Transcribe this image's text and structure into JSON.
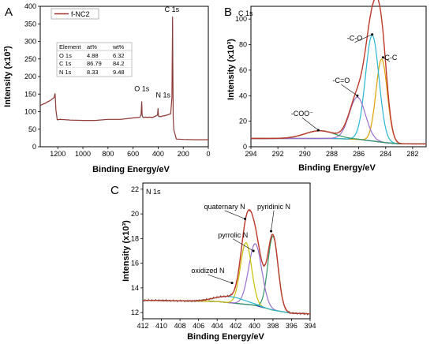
{
  "chart_data": [
    {
      "type": "line",
      "letter": "A",
      "xlabel": "Binding Energy/eV",
      "ylabel": "Intensity (x10³)",
      "xlim": [
        1340,
        0
      ],
      "ylim": [
        0,
        400
      ],
      "x_reversed": true,
      "xticks": [
        1200,
        1000,
        800,
        600,
        400,
        200,
        0
      ],
      "yticks": [
        0,
        50,
        100,
        150,
        200,
        250,
        300,
        350,
        400
      ],
      "legend": {
        "label": "f-NC2",
        "position": "top-left"
      },
      "series": [
        {
          "name": "f-NC2",
          "color": "#a0302a",
          "x": [
            1340,
            1300,
            1260,
            1230,
            1222,
            1215,
            1205,
            1180,
            1100,
            1000,
            900,
            800,
            700,
            600,
            545,
            536,
            531,
            527,
            520,
            480,
            440,
            405,
            401,
            398,
            395,
            380,
            330,
            300,
            290,
            285,
            283,
            280,
            275,
            255,
            200,
            100,
            0
          ],
          "y": [
            118,
            124,
            132,
            140,
            152,
            104,
            77,
            78,
            76,
            75,
            75,
            78,
            78,
            82,
            84,
            92,
            129,
            88,
            84,
            84,
            84,
            90,
            110,
            90,
            86,
            86,
            90,
            94,
            140,
            370,
            240,
            80,
            48,
            22,
            21,
            20,
            20
          ]
        }
      ],
      "annotations": [
        {
          "text": "C 1s",
          "x": 290,
          "y": 384
        },
        {
          "text": "O 1s",
          "x": 530,
          "y": 158
        },
        {
          "text": "N 1s",
          "x": 360,
          "y": 140
        }
      ],
      "table": {
        "headers": [
          "Element",
          "at%",
          "wt%"
        ],
        "rows": [
          [
            "O 1s",
            "4.88",
            "6.32"
          ],
          [
            "C 1s",
            "86.79",
            "84.2"
          ],
          [
            "N 1s",
            "8.33",
            "9.48"
          ]
        ]
      }
    },
    {
      "type": "line",
      "letter": "B",
      "title": "C 1s",
      "xlabel": "Binding Energy/eV",
      "ylabel": "Intensity (x10³)",
      "xlim": [
        294,
        281
      ],
      "ylim": [
        0,
        110
      ],
      "x_reversed": true,
      "xticks": [
        294,
        292,
        290,
        288,
        286,
        284,
        282
      ],
      "yticks": [
        0,
        20,
        40,
        60,
        80,
        100
      ],
      "baseline": [
        [
          294,
          6.5
        ],
        [
          288,
          6.5
        ],
        [
          286,
          5.8
        ],
        [
          284,
          3.2
        ],
        [
          283,
          2.3
        ],
        [
          281,
          2.2
        ]
      ],
      "peaks": [
        {
          "label": "-C-C",
          "center": 284.3,
          "height": 65,
          "width": 0.42,
          "color": "#e0a000"
        },
        {
          "label": "-C-O",
          "center": 285.0,
          "height": 83,
          "width": 0.5,
          "color": "#26b6d6"
        },
        {
          "label": "-C=O",
          "center": 286.1,
          "height": 33,
          "width": 0.6,
          "color": "#9a6ecf"
        },
        {
          "label": "-COO⁻",
          "center": 288.9,
          "height": 6,
          "width": 1.1,
          "color": "#2e9460"
        }
      ],
      "colors": {
        "raw": "#404040",
        "envelope": "#c0392b",
        "baseline": "#2a4aa0"
      },
      "annotations": [
        {
          "text": "-COO⁻",
          "x": 290.2,
          "y": 24,
          "tx": 289.0,
          "ty": 13
        },
        {
          "text": "-C=O",
          "x": 287.3,
          "y": 50,
          "tx": 286.1,
          "ty": 40
        },
        {
          "text": "-C-O",
          "x": 286.3,
          "y": 83,
          "tx": 285.0,
          "ty": 88
        },
        {
          "text": "-C-C",
          "x": 283.7,
          "y": 68,
          "tx": 284.2,
          "ty": 70
        }
      ]
    },
    {
      "type": "line",
      "letter": "C",
      "title": "N 1s",
      "xlabel": "Binding Energy/eV",
      "ylabel": "Intensity (x10³)",
      "xlim": [
        412,
        394
      ],
      "ylim": [
        11.5,
        22.5
      ],
      "x_reversed": true,
      "xticks": [
        412,
        410,
        408,
        406,
        404,
        402,
        400,
        398,
        396,
        394
      ],
      "yticks": [
        12,
        14,
        16,
        18,
        20,
        22
      ],
      "baseline": [
        [
          412,
          13.0
        ],
        [
          404,
          12.9
        ],
        [
          400,
          12.6
        ],
        [
          398,
          12.2
        ],
        [
          396,
          11.95
        ],
        [
          394,
          11.9
        ]
      ],
      "peaks": [
        {
          "label": "pyridinic N",
          "center": 398.0,
          "height": 6.0,
          "width": 0.55,
          "color": "#2e9460"
        },
        {
          "label": "pyrrolic N",
          "center": 399.9,
          "height": 5.0,
          "width": 0.7,
          "color": "#9a6ecf"
        },
        {
          "label": "quaternary N",
          "center": 400.9,
          "height": 5.0,
          "width": 0.6,
          "color": "#c8c000"
        },
        {
          "label": "oxidized N",
          "center": 402.6,
          "height": 0.5,
          "width": 1.6,
          "color": "#26b6d6"
        }
      ],
      "colors": {
        "raw": "#404040",
        "envelope": "#c0392b",
        "baseline": "#2a4aa0"
      },
      "annotations": [
        {
          "text": "quaternary N",
          "x": 403.2,
          "y": 20.4,
          "tx": 401.0,
          "ty": 19.6
        },
        {
          "text": "pyrrolic N",
          "x": 402.3,
          "y": 18.1,
          "tx": 400.1,
          "ty": 17.0
        },
        {
          "text": "pyridinic N",
          "x": 397.9,
          "y": 20.4,
          "tx": 398.2,
          "ty": 18.6
        },
        {
          "text": "oxidized N",
          "x": 405.0,
          "y": 15.2,
          "tx": 402.4,
          "ty": 14.4
        }
      ]
    }
  ]
}
